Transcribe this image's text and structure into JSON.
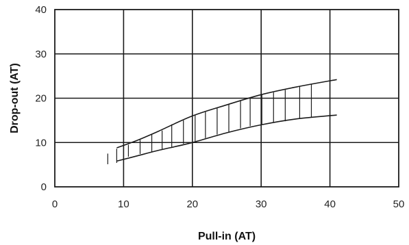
{
  "chart_data": {
    "type": "area",
    "xlabel": "Pull-in (AT)",
    "ylabel": "Drop-out (AT)",
    "xlim": [
      0,
      50
    ],
    "ylim": [
      0,
      40
    ],
    "x_ticks": [
      0,
      10,
      20,
      30,
      40,
      50
    ],
    "y_ticks": [
      0,
      10,
      20,
      30,
      40
    ],
    "grid": true,
    "legend": "none",
    "series": [
      {
        "role": "upper-boundary",
        "points": [
          [
            9,
            8.8
          ],
          [
            12,
            10.5
          ],
          [
            15,
            12.5
          ],
          [
            20,
            16
          ],
          [
            25,
            18.5
          ],
          [
            30,
            20.8
          ],
          [
            35,
            22.5
          ],
          [
            41,
            24.2
          ]
        ]
      },
      {
        "role": "lower-boundary",
        "points": [
          [
            9,
            5.8
          ],
          [
            12,
            7
          ],
          [
            15,
            8.2
          ],
          [
            20,
            10
          ],
          [
            25,
            12.2
          ],
          [
            30,
            14
          ],
          [
            35,
            15.3
          ],
          [
            41,
            16.2
          ]
        ]
      }
    ],
    "hatch_segments": [
      {
        "x": 7.7,
        "y_low": 5.1,
        "y_high": 7.5
      },
      {
        "x": 9.0,
        "y_low": 5.4,
        "y_high": 8.6
      },
      {
        "x": 10.7,
        "y_low": 6.8,
        "y_high": 9.5
      },
      {
        "x": 12.4,
        "y_low": 7.4,
        "y_high": 10.6
      },
      {
        "x": 14.1,
        "y_low": 7.9,
        "y_high": 11.9
      },
      {
        "x": 15.6,
        "y_low": 8.5,
        "y_high": 12.7
      },
      {
        "x": 17.0,
        "y_low": 9.0,
        "y_high": 14.1
      },
      {
        "x": 18.7,
        "y_low": 9.7,
        "y_high": 15.0
      },
      {
        "x": 20.4,
        "y_low": 10.3,
        "y_high": 16.2
      },
      {
        "x": 21.9,
        "y_low": 11.0,
        "y_high": 16.9
      },
      {
        "x": 23.6,
        "y_low": 11.8,
        "y_high": 17.8
      },
      {
        "x": 25.3,
        "y_low": 12.4,
        "y_high": 18.6
      },
      {
        "x": 27.0,
        "y_low": 13.2,
        "y_high": 19.5
      },
      {
        "x": 28.4,
        "y_low": 13.7,
        "y_high": 20.1
      },
      {
        "x": 30.1,
        "y_low": 14.1,
        "y_high": 20.8
      },
      {
        "x": 31.8,
        "y_low": 14.5,
        "y_high": 21.3
      },
      {
        "x": 33.5,
        "y_low": 14.8,
        "y_high": 21.9
      },
      {
        "x": 35.6,
        "y_low": 15.3,
        "y_high": 22.7
      },
      {
        "x": 37.3,
        "y_low": 15.6,
        "y_high": 23.1
      }
    ]
  }
}
